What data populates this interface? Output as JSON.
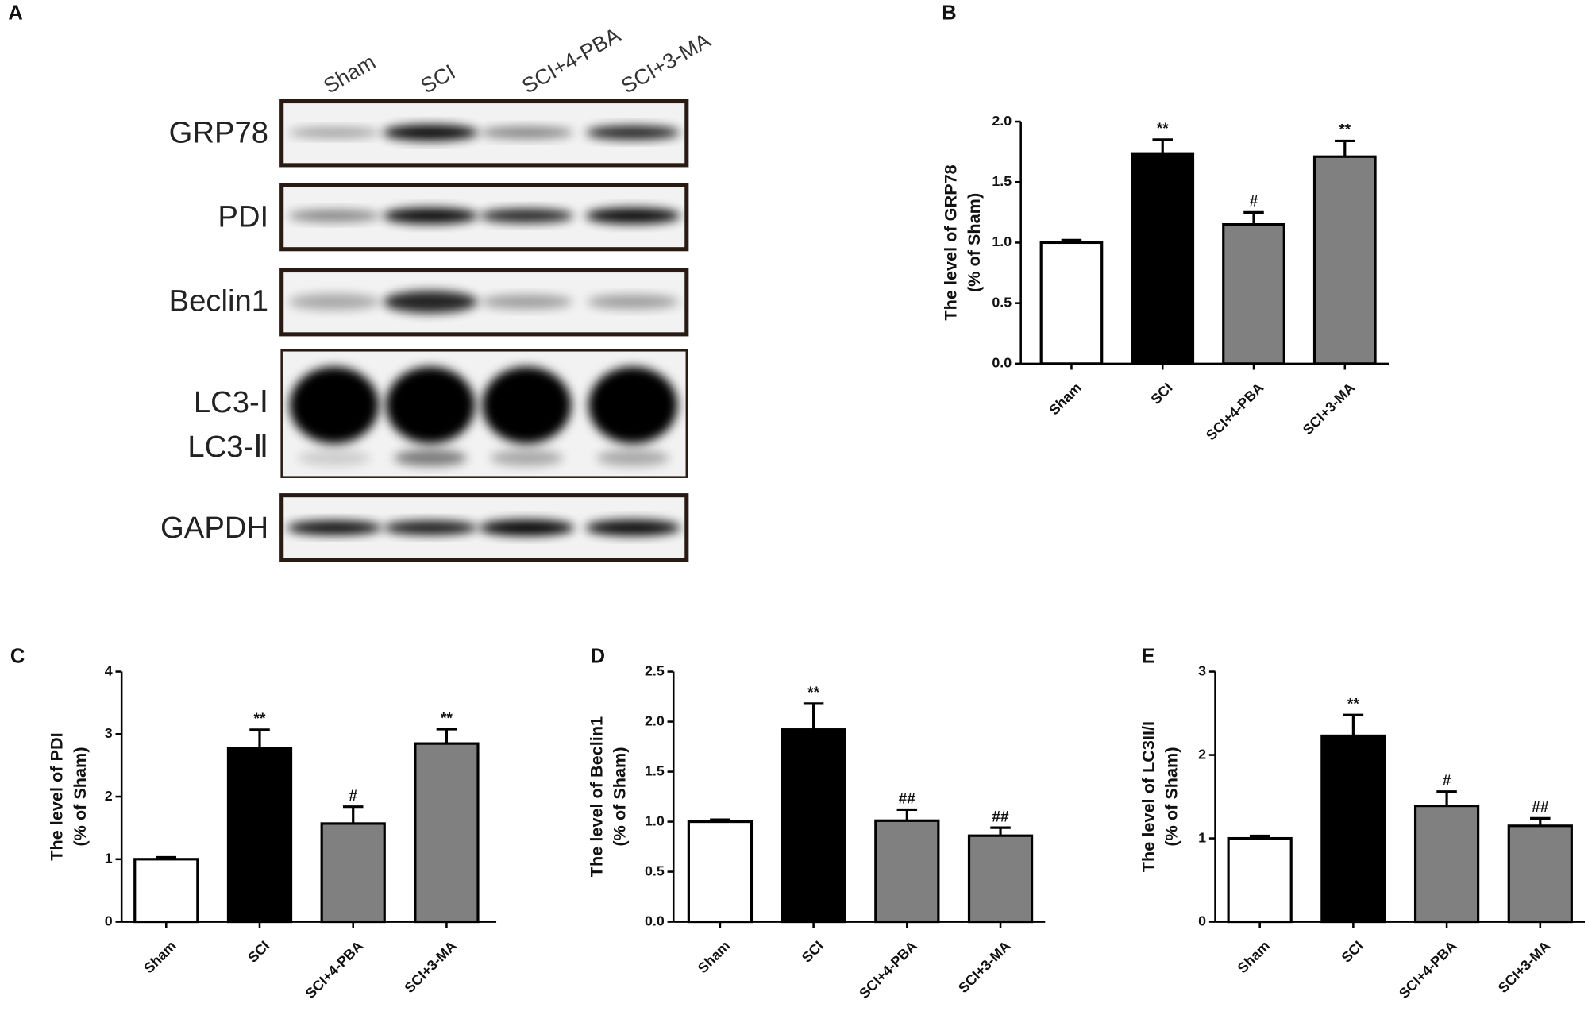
{
  "blot": {
    "panel": "A",
    "lanes": [
      "Sham",
      "SCI",
      "SCI+4-PBA",
      "SCI+3-MA"
    ],
    "rows": [
      "GRP78",
      "PDI",
      "Beclin1",
      "LC3-Ⅰ",
      "LC3-Ⅱ",
      "GAPDH"
    ]
  },
  "chart_data": [
    {
      "type": "bar",
      "panel": "B",
      "ylabel": [
        "The level of GRP78",
        "(% of Sham)"
      ],
      "categories": [
        "Sham",
        "SCI",
        "SCI+4-PBA",
        "SCI+3-MA"
      ],
      "values": [
        1.0,
        1.73,
        1.15,
        1.71
      ],
      "errors": [
        0.02,
        0.12,
        0.1,
        0.13
      ],
      "annotations": [
        null,
        "**",
        "#",
        "**"
      ],
      "colors": [
        "#ffffff",
        "#000000",
        "#808080",
        "#808080"
      ],
      "ylim": [
        0,
        2
      ],
      "yticks": [
        {
          "value": 0,
          "label": "0.0"
        },
        0.5,
        {
          "value": 1,
          "label": "1.0"
        },
        1.5,
        {
          "value": 2,
          "label": "2.0"
        }
      ]
    },
    {
      "type": "bar",
      "panel": "C",
      "ylabel": [
        "The level of PDI",
        "(% of Sham)"
      ],
      "categories": [
        "Sham",
        "SCI",
        "SCI+4-PBA",
        "SCI+3-MA"
      ],
      "values": [
        1.0,
        2.77,
        1.57,
        2.85
      ],
      "errors": [
        0.03,
        0.3,
        0.27,
        0.23
      ],
      "annotations": [
        null,
        "**",
        "#",
        "**"
      ],
      "colors": [
        "#ffffff",
        "#000000",
        "#808080",
        "#808080"
      ],
      "ylim": [
        0,
        4
      ],
      "yticks": [
        0,
        1,
        2,
        3,
        4
      ]
    },
    {
      "type": "bar",
      "panel": "D",
      "ylabel": [
        "The level of Beclin1",
        "(% of Sham)"
      ],
      "categories": [
        "Sham",
        "SCI",
        "SCI+4-PBA",
        "SCI+3-MA"
      ],
      "values": [
        1.0,
        1.92,
        1.01,
        0.86
      ],
      "errors": [
        0.02,
        0.26,
        0.11,
        0.08
      ],
      "annotations": [
        null,
        "**",
        "##",
        "##"
      ],
      "colors": [
        "#ffffff",
        "#000000",
        "#808080",
        "#808080"
      ],
      "ylim": [
        0,
        2.5
      ],
      "yticks": [
        {
          "value": 0,
          "label": "0.0"
        },
        0.5,
        {
          "value": 1,
          "label": "1.0"
        },
        1.5,
        {
          "value": 2,
          "label": "2.0"
        },
        2.5
      ]
    },
    {
      "type": "bar",
      "panel": "E",
      "ylabel": [
        "The level of LC3II/I",
        "(% of Sham)"
      ],
      "categories": [
        "Sham",
        "SCI",
        "SCI+4-PBA",
        "SCI+3-MA"
      ],
      "values": [
        1.0,
        2.23,
        1.39,
        1.15
      ],
      "errors": [
        0.03,
        0.25,
        0.17,
        0.09
      ],
      "annotations": [
        null,
        "**",
        "#",
        "##"
      ],
      "colors": [
        "#ffffff",
        "#000000",
        "#808080",
        "#808080"
      ],
      "ylim": [
        0,
        3
      ],
      "yticks": [
        0,
        1,
        2,
        3
      ]
    }
  ]
}
